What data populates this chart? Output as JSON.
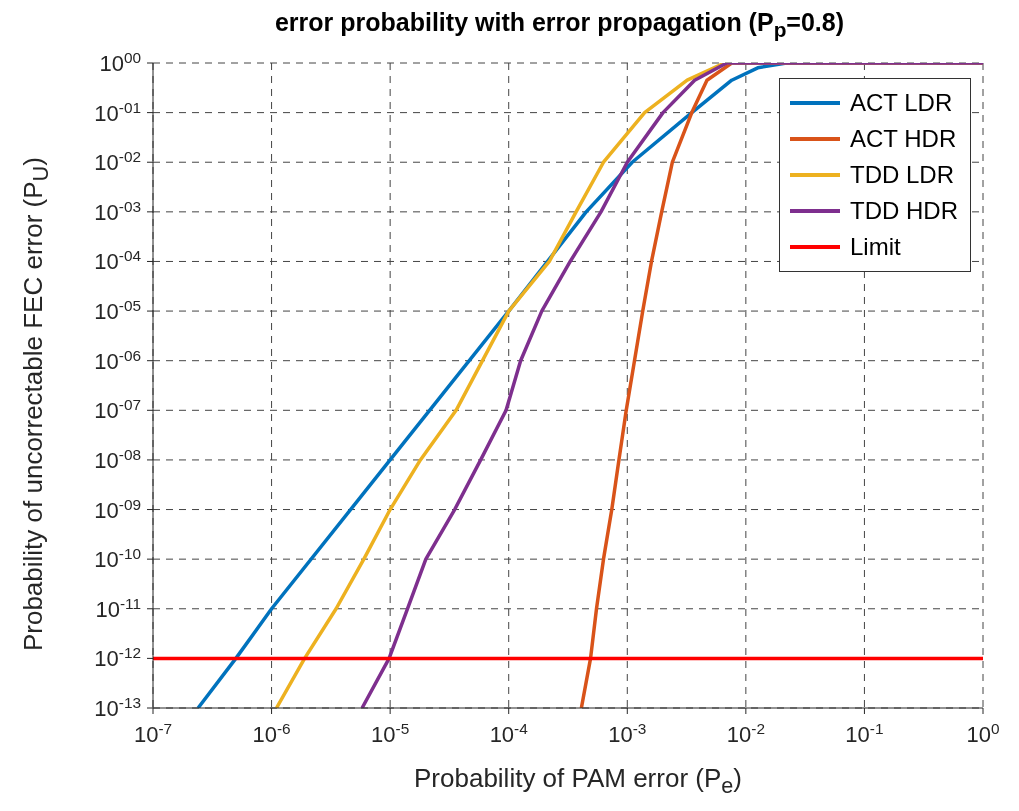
{
  "chart_data": {
    "type": "line",
    "title": "error probability with error propagation (P$_{p}$=0.8)",
    "xlabel": "Probability of PAM error (P$_{e}$)",
    "ylabel": "Probability of uncorrectable FEC error (P$_{U}$)",
    "log": "xy",
    "grid": true,
    "legend": "top right",
    "marker": "none",
    "line_style": "solid",
    "xlim": [
      1e-07,
      1
    ],
    "ylim": [
      1e-13,
      1
    ],
    "xticks": [
      {
        "value": 1e-07,
        "label": "10$^{-7}$"
      },
      {
        "value": 1e-06,
        "label": "10$^{-6}$"
      },
      {
        "value": 1e-05,
        "label": "10$^{-5}$"
      },
      {
        "value": 0.0001,
        "label": "10$^{-4}$"
      },
      {
        "value": 0.001,
        "label": "10$^{-3}$"
      },
      {
        "value": 0.01,
        "label": "10$^{-2}$"
      },
      {
        "value": 0.1,
        "label": "10$^{-1}$"
      },
      {
        "value": 1,
        "label": "10$^{0}$"
      }
    ],
    "yticks": [
      {
        "value": 1e-13,
        "label": "10$^{-13}$"
      },
      {
        "value": 1e-12,
        "label": "10$^{-12}$"
      },
      {
        "value": 1e-11,
        "label": "10$^{-11}$"
      },
      {
        "value": 1e-10,
        "label": "10$^{-10}$"
      },
      {
        "value": 1e-09,
        "label": "10$^{-09}$"
      },
      {
        "value": 1e-08,
        "label": "10$^{-08}$"
      },
      {
        "value": 1e-07,
        "label": "10$^{-07}$"
      },
      {
        "value": 1e-06,
        "label": "10$^{-06}$"
      },
      {
        "value": 1e-05,
        "label": "10$^{-05}$"
      },
      {
        "value": 0.0001,
        "label": "10$^{-04}$"
      },
      {
        "value": 0.001,
        "label": "10$^{-03}$"
      },
      {
        "value": 0.01,
        "label": "10$^{-02}$"
      },
      {
        "value": 0.1,
        "label": "10$^{-01}$"
      },
      {
        "value": 1,
        "label": "10$^{00}$"
      }
    ],
    "series": [
      {
        "name": "ACT LDR",
        "color": "#0072bd",
        "x": [
          2.4e-07,
          5e-07,
          1e-06,
          1e-05,
          0.0001,
          0.00045,
          0.0011,
          0.0035,
          0.0076,
          0.0126,
          0.022,
          1
        ],
        "values": [
          1e-13,
          1e-12,
          1e-11,
          1e-08,
          1e-05,
          0.001,
          0.01,
          0.1,
          0.45,
          0.8,
          1,
          1
        ]
      },
      {
        "name": "ACT HDR",
        "color": "#d95319",
        "x": [
          0.00041,
          0.00049,
          0.00055,
          0.00063,
          0.00074,
          0.00085,
          0.00098,
          0.00115,
          0.00135,
          0.0016,
          0.00195,
          0.0024,
          0.0035,
          0.0047,
          0.0076,
          1
        ],
        "values": [
          1e-13,
          1e-12,
          1e-11,
          1e-10,
          1e-09,
          1e-08,
          1e-07,
          1e-06,
          1e-05,
          0.0001,
          0.001,
          0.01,
          0.1,
          0.45,
          1,
          1
        ]
      },
      {
        "name": "TDD LDR",
        "color": "#edb120",
        "x": [
          1.1e-06,
          1.9e-06,
          3.5e-06,
          6e-06,
          1e-05,
          1.8e-05,
          3.6e-05,
          0.0001,
          0.00022,
          0.00037,
          0.00063,
          0.0014,
          0.0032,
          0.0066,
          1
        ],
        "values": [
          1e-13,
          1e-12,
          1e-11,
          1e-10,
          1e-09,
          1e-08,
          1e-07,
          1e-05,
          0.0001,
          0.001,
          0.01,
          0.1,
          0.45,
          1,
          1
        ]
      },
      {
        "name": "TDD HDR",
        "color": "#7e2f8e",
        "x": [
          5.8e-06,
          9.8e-06,
          1.4e-05,
          2e-05,
          3.5e-05,
          5.8e-05,
          9.5e-05,
          0.000126,
          0.00019,
          0.00033,
          0.0006,
          0.001,
          0.002,
          0.0037,
          0.0069,
          1
        ],
        "values": [
          1e-13,
          1e-12,
          1e-11,
          1e-10,
          1e-09,
          1e-08,
          1e-07,
          1e-06,
          1e-05,
          0.0001,
          0.001,
          0.01,
          0.1,
          0.45,
          1,
          1
        ]
      },
      {
        "name": "Limit",
        "color": "#ff0000",
        "x": [
          1e-07,
          1
        ],
        "values": [
          1e-12,
          1e-12
        ]
      }
    ]
  }
}
